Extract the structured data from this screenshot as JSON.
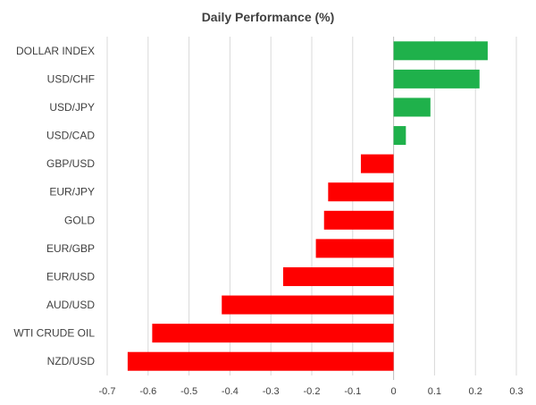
{
  "chart_data": {
    "type": "bar",
    "orientation": "horizontal",
    "title": "Daily Performance (%)",
    "categories": [
      "DOLLAR INDEX",
      "USD/CHF",
      "USD/JPY",
      "USD/CAD",
      "GBP/USD",
      "EUR/JPY",
      "GOLD",
      "EUR/GBP",
      "EUR/USD",
      "AUD/USD",
      "WTI CRUDE OIL",
      "NZD/USD"
    ],
    "values": [
      0.23,
      0.21,
      0.09,
      0.03,
      -0.08,
      -0.16,
      -0.17,
      -0.19,
      -0.27,
      -0.42,
      -0.59,
      -0.65
    ],
    "xlim": [
      -0.7,
      0.3
    ],
    "xticks": [
      "-0.7",
      "-0.6",
      "-0.5",
      "-0.4",
      "-0.3",
      "-0.2",
      "-0.1",
      "0",
      "0.1",
      "0.2",
      "0.3"
    ],
    "xtick_values": [
      -0.7,
      -0.6,
      -0.5,
      -0.4,
      -0.3,
      -0.2,
      -0.1,
      0,
      0.1,
      0.2,
      0.3
    ],
    "grid": true,
    "colors": {
      "positive": "#1fb14b",
      "negative": "#ff0000"
    }
  }
}
